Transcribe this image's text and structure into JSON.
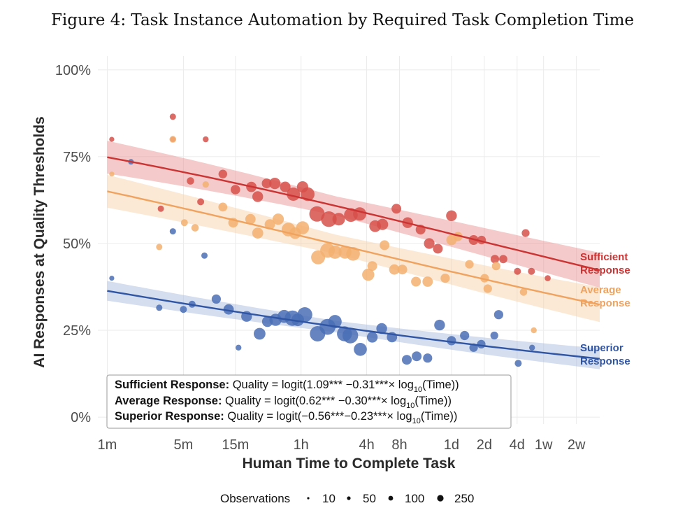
{
  "figure_title": "Figure 4:  Task Instance Automation by Required Task Completion Time",
  "chart_data": {
    "type": "scatter",
    "title": "Figure 4:  Task Instance Automation by Required Task Completion Time",
    "xlabel": "Human Time to Complete Task",
    "ylabel": "AI Responses at Quality Thresholds",
    "x_scale": "log10 minutes",
    "xlim_minutes": [
      0.82,
      33000
    ],
    "ylim": [
      -0.02,
      1.04
    ],
    "x_ticks": [
      {
        "label": "1m",
        "minutes": 1
      },
      {
        "label": "5m",
        "minutes": 5
      },
      {
        "label": "15m",
        "minutes": 15
      },
      {
        "label": "1h",
        "minutes": 60
      },
      {
        "label": "4h",
        "minutes": 240
      },
      {
        "label": "8h",
        "minutes": 480
      },
      {
        "label": "1d",
        "minutes": 1440
      },
      {
        "label": "2d",
        "minutes": 2880
      },
      {
        "label": "4d",
        "minutes": 5760
      },
      {
        "label": "1w",
        "minutes": 10080
      },
      {
        "label": "2w",
        "minutes": 20160
      }
    ],
    "y_ticks": [
      {
        "label": "0%",
        "value": 0
      },
      {
        "label": "25%",
        "value": 0.25
      },
      {
        "label": "50%",
        "value": 0.5
      },
      {
        "label": "75%",
        "value": 0.75
      },
      {
        "label": "100%",
        "value": 1
      }
    ],
    "grid": true,
    "series": [
      {
        "name": "Sufficient Response",
        "label_line1": "Sufficient",
        "label_line2": "Response",
        "color": "#cc3333",
        "point_color": "#d6504a",
        "band_color": "#e8898a",
        "intercept": 1.09,
        "slope": -0.31,
        "ci": 0.05,
        "points": [
          [
            1.1,
            0.8,
            5
          ],
          [
            4.0,
            0.865,
            14
          ],
          [
            4.0,
            0.8,
            6
          ],
          [
            8.0,
            0.8,
            10
          ],
          [
            3.1,
            0.6,
            14
          ],
          [
            5.8,
            0.68,
            25
          ],
          [
            7.2,
            0.62,
            20
          ],
          [
            11.5,
            0.7,
            42
          ],
          [
            15.0,
            0.655,
            55
          ],
          [
            21.0,
            0.663,
            70
          ],
          [
            24.0,
            0.635,
            80
          ],
          [
            29.0,
            0.673,
            60
          ],
          [
            34.5,
            0.673,
            90
          ],
          [
            43.0,
            0.663,
            75
          ],
          [
            51.0,
            0.642,
            140
          ],
          [
            62.0,
            0.663,
            90
          ],
          [
            69.0,
            0.642,
            150
          ],
          [
            84.0,
            0.585,
            200
          ],
          [
            108.0,
            0.57,
            210
          ],
          [
            133.0,
            0.57,
            120
          ],
          [
            172.0,
            0.582,
            150
          ],
          [
            207.0,
            0.585,
            140
          ],
          [
            287.0,
            0.55,
            100
          ],
          [
            335.0,
            0.555,
            90
          ],
          [
            450.0,
            0.6,
            60
          ],
          [
            570.0,
            0.56,
            80
          ],
          [
            750.0,
            0.54,
            60
          ],
          [
            900.0,
            0.5,
            75
          ],
          [
            1080.0,
            0.485,
            60
          ],
          [
            1440.0,
            0.58,
            80
          ],
          [
            2300.0,
            0.51,
            60
          ],
          [
            2720.0,
            0.51,
            40
          ],
          [
            3600.0,
            0.455,
            40
          ],
          [
            4300.0,
            0.455,
            35
          ],
          [
            5800.0,
            0.42,
            20
          ],
          [
            6900.0,
            0.53,
            30
          ],
          [
            7800.0,
            0.42,
            20
          ],
          [
            11000.0,
            0.4,
            12
          ]
        ]
      },
      {
        "name": "Average Response",
        "label_line1": "Average",
        "label_line2": "Response",
        "color": "#f0a35e",
        "point_color": "#f3b070",
        "band_color": "#f7cfa5",
        "intercept": 0.62,
        "slope": -0.3,
        "ci": 0.05,
        "points": [
          [
            1.1,
            0.7,
            5
          ],
          [
            3.0,
            0.49,
            14
          ],
          [
            4.0,
            0.8,
            18
          ],
          [
            5.1,
            0.56,
            20
          ],
          [
            6.4,
            0.545,
            25
          ],
          [
            8.0,
            0.67,
            15
          ],
          [
            11.5,
            0.605,
            45
          ],
          [
            14.3,
            0.56,
            60
          ],
          [
            20.6,
            0.57,
            70
          ],
          [
            24.0,
            0.53,
            85
          ],
          [
            31.0,
            0.555,
            70
          ],
          [
            37.0,
            0.57,
            90
          ],
          [
            46.0,
            0.54,
            150
          ],
          [
            53.0,
            0.53,
            100
          ],
          [
            62.0,
            0.545,
            130
          ],
          [
            86.0,
            0.46,
            160
          ],
          [
            105.0,
            0.48,
            180
          ],
          [
            123.0,
            0.475,
            140
          ],
          [
            152.0,
            0.475,
            130
          ],
          [
            180.0,
            0.47,
            150
          ],
          [
            248.0,
            0.41,
            110
          ],
          [
            270.0,
            0.435,
            60
          ],
          [
            350.0,
            0.495,
            60
          ],
          [
            430.0,
            0.425,
            70
          ],
          [
            510.0,
            0.425,
            60
          ],
          [
            680.0,
            0.39,
            60
          ],
          [
            870.0,
            0.39,
            70
          ],
          [
            1260.0,
            0.4,
            50
          ],
          [
            1440.0,
            0.51,
            70
          ],
          [
            1650.0,
            0.52,
            50
          ],
          [
            2100.0,
            0.44,
            40
          ],
          [
            2900.0,
            0.4,
            40
          ],
          [
            3100.0,
            0.37,
            40
          ],
          [
            3700.0,
            0.435,
            40
          ],
          [
            6600.0,
            0.36,
            25
          ],
          [
            8200.0,
            0.25,
            10
          ]
        ]
      },
      {
        "name": "Superior Response",
        "label_line1": "Superior",
        "label_line2": "Response",
        "color": "#2f55a4",
        "point_color": "#4a6fb5",
        "band_color": "#9fb5dc",
        "intercept": -0.56,
        "slope": -0.23,
        "ci": 0.03,
        "points": [
          [
            1.1,
            0.4,
            5
          ],
          [
            1.65,
            0.735,
            8
          ],
          [
            3.0,
            0.315,
            14
          ],
          [
            4.0,
            0.535,
            14
          ],
          [
            5.0,
            0.31,
            20
          ],
          [
            6.0,
            0.325,
            20
          ],
          [
            7.8,
            0.465,
            14
          ],
          [
            10.0,
            0.34,
            50
          ],
          [
            13.0,
            0.31,
            70
          ],
          [
            16.0,
            0.2,
            10
          ],
          [
            19.0,
            0.29,
            80
          ],
          [
            25.0,
            0.24,
            100
          ],
          [
            29.5,
            0.275,
            80
          ],
          [
            35.0,
            0.28,
            110
          ],
          [
            42.0,
            0.29,
            130
          ],
          [
            50.0,
            0.285,
            200
          ],
          [
            56.0,
            0.28,
            120
          ],
          [
            65.0,
            0.295,
            190
          ],
          [
            85.0,
            0.24,
            200
          ],
          [
            105.0,
            0.26,
            220
          ],
          [
            123.0,
            0.275,
            140
          ],
          [
            150.0,
            0.24,
            190
          ],
          [
            170.0,
            0.235,
            210
          ],
          [
            210.0,
            0.195,
            130
          ],
          [
            270.0,
            0.23,
            80
          ],
          [
            330.0,
            0.255,
            80
          ],
          [
            410.0,
            0.23,
            70
          ],
          [
            560.0,
            0.165,
            60
          ],
          [
            690.0,
            0.175,
            60
          ],
          [
            870.0,
            0.17,
            50
          ],
          [
            1120.0,
            0.265,
            80
          ],
          [
            1440.0,
            0.22,
            50
          ],
          [
            1900.0,
            0.235,
            50
          ],
          [
            2300.0,
            0.2,
            40
          ],
          [
            2700.0,
            0.21,
            40
          ],
          [
            3560.0,
            0.235,
            30
          ],
          [
            3900.0,
            0.295,
            50
          ],
          [
            5900.0,
            0.155,
            20
          ],
          [
            7900.0,
            0.2,
            10
          ]
        ]
      }
    ],
    "equations": [
      {
        "name": "Sufficient Response:",
        "pre": "Quality = logit(1.09*** −0.31***× log",
        "sub": "10",
        "post": "(Time))"
      },
      {
        "name": "Average Response:",
        "pre": "Quality = logit(0.62*** −0.30***× log",
        "sub": "10",
        "post": "(Time))"
      },
      {
        "name": "Superior Response:",
        "pre": "Quality = logit(−0.56***−0.23***× log",
        "sub": "10",
        "post": "(Time))"
      }
    ],
    "size_legend": {
      "title": "Observations",
      "items": [
        {
          "label": "10",
          "n": 10
        },
        {
          "label": "50",
          "n": 50
        },
        {
          "label": "100",
          "n": 100
        },
        {
          "label": "250",
          "n": 250
        }
      ]
    }
  }
}
